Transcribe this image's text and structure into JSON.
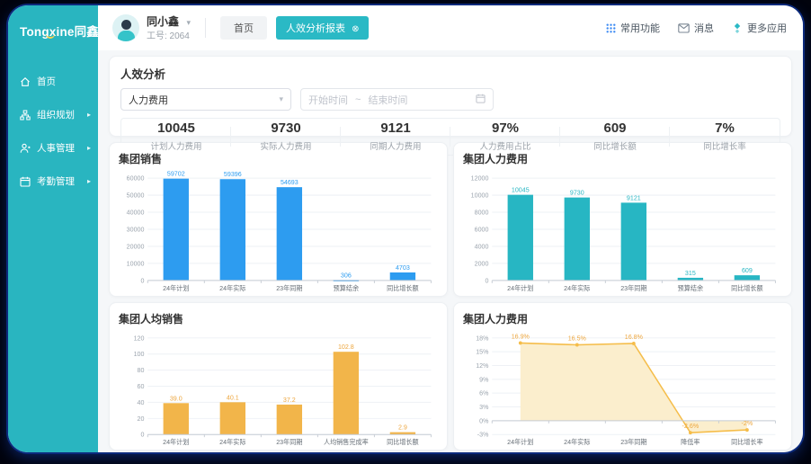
{
  "brand": {
    "name": "Tongxine同鑫"
  },
  "sidebar": {
    "items": [
      {
        "label": "首页"
      },
      {
        "label": "组织规划"
      },
      {
        "label": "人事管理"
      },
      {
        "label": "考勤管理"
      }
    ]
  },
  "topbar": {
    "user_name": "同小鑫",
    "user_caret": "▾",
    "employee_id": "工号: 2064",
    "tab_home": "首页",
    "tab_active": "人效分析报表",
    "tab_close": "⊗",
    "actions": [
      {
        "label": "常用功能"
      },
      {
        "label": "消息"
      },
      {
        "label": "更多应用"
      }
    ]
  },
  "filter": {
    "title": "人效分析",
    "metric_selected": "人力费用",
    "select_caret": "▾",
    "date_start_placeholder": "开始时间",
    "date_separator": "~",
    "date_end_placeholder": "结束时间"
  },
  "kpis": [
    {
      "value": "10045",
      "label": "计划人力费用"
    },
    {
      "value": "9730",
      "label": "实际人力费用"
    },
    {
      "value": "9121",
      "label": "同期人力费用"
    },
    {
      "value": "97%",
      "label": "人力费用占比"
    },
    {
      "value": "609",
      "label": "同比增长额"
    },
    {
      "value": "7%",
      "label": "同比增长率"
    }
  ],
  "colors": {
    "brand_teal": "#29b5c0",
    "active_tab": "#2ab9c5",
    "bar_blue": "#2d9cf0",
    "bar_teal": "#27b6c3",
    "bar_yellow": "#f2b54a",
    "line_yellow": "#f5bd4a"
  },
  "chart_data": [
    {
      "type": "bar",
      "title": "集团销售",
      "categories": [
        "24年计划",
        "24年实际",
        "23年同期",
        "预算结余",
        "同比增长额"
      ],
      "values": [
        59702,
        59396,
        54693,
        306,
        4703
      ],
      "labels": [
        "59702",
        "59396",
        "54693",
        "306",
        "4703"
      ],
      "ylim": [
        0,
        60000
      ],
      "ytick_step": 10000,
      "unit": "",
      "grid": true,
      "color": "#2d9cf0",
      "label_color": "#2d9cf0"
    },
    {
      "type": "bar",
      "title": "集团人力费用",
      "categories": [
        "24年计划",
        "24年实际",
        "23年同期",
        "预算结余",
        "同比增长额"
      ],
      "values": [
        10045,
        9730,
        9121,
        315,
        609
      ],
      "labels": [
        "10045",
        "9730",
        "9121",
        "315",
        "609"
      ],
      "ylim": [
        0,
        12000
      ],
      "ytick_step": 2000,
      "unit": "",
      "grid": true,
      "color": "#27b6c3",
      "label_color": "#27b6c3"
    },
    {
      "type": "bar",
      "title": "集团人均销售",
      "categories": [
        "24年计划",
        "24年实际",
        "23年同期",
        "人均销售完成率",
        "同比增长额"
      ],
      "values": [
        39.0,
        40.1,
        37.2,
        102.8,
        2.9
      ],
      "labels": [
        "39.0",
        "40.1",
        "37.2",
        "102.8",
        "2.9"
      ],
      "ylim": [
        0,
        120
      ],
      "ytick_step": 20,
      "unit": "",
      "grid": true,
      "color": "#f2b54a",
      "label_color": "#eda63e"
    },
    {
      "type": "line",
      "title": "集团人力费用",
      "categories": [
        "24年计划",
        "24年实际",
        "23年同期",
        "降低率",
        "同比增长率"
      ],
      "values": [
        16.9,
        16.5,
        16.8,
        -2.6,
        -2
      ],
      "labels": [
        "16.9%",
        "16.5%",
        "16.8%",
        "-2.6%",
        "-2%"
      ],
      "ylim": [
        -3,
        18
      ],
      "ytick_step": 3,
      "unit": "%",
      "grid": true,
      "color": "#f5bd4a",
      "label_color": "#eda63e",
      "fill": "#fbeecd",
      "legend": "none"
    }
  ]
}
